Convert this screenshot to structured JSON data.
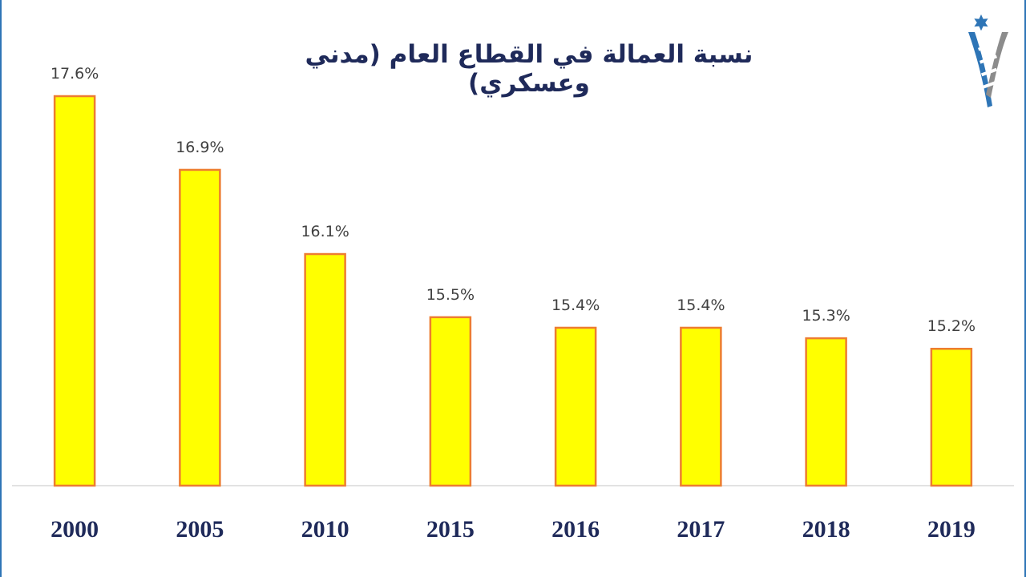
{
  "chart_data": {
    "type": "bar",
    "title": "نسبة العمالة في القطاع العام (مدني وعسكري)",
    "categories": [
      "2000",
      "2005",
      "2010",
      "2015",
      "2016",
      "2017",
      "2018",
      "2019"
    ],
    "values": [
      17.6,
      16.9,
      16.1,
      15.5,
      15.4,
      15.4,
      15.3,
      15.2
    ],
    "value_labels": [
      "17.6%",
      "16.9%",
      "16.1%",
      "15.5%",
      "15.4%",
      "15.4%",
      "15.3%",
      "15.2%"
    ],
    "xlabel": "",
    "ylabel": "",
    "ylim": [
      13.9,
      17.6
    ],
    "grid": false,
    "legend": "none",
    "colors": {
      "bar_fill": "#ffff00",
      "bar_stroke": "#ed7d31",
      "title": "#1f2a5a",
      "category_labels": "#1f2a5a",
      "value_labels": "#404040",
      "baseline": "#d9d9d9",
      "frame": "#2e75b6"
    }
  },
  "logo": {
    "icon": "jordan-star-emblem-icon",
    "colors": {
      "blue": "#2e75b6",
      "grey": "#8c8c8c"
    }
  }
}
